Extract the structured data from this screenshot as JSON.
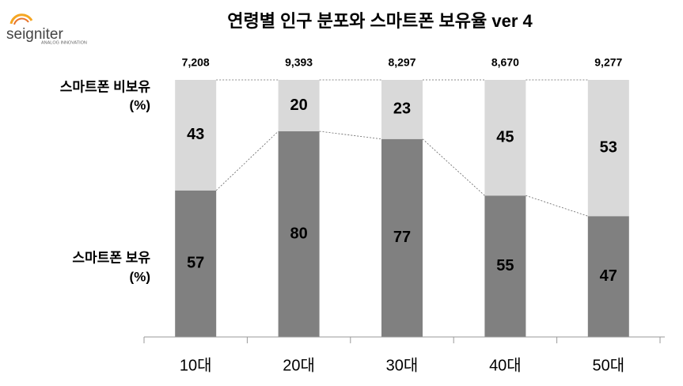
{
  "logo": {
    "name": "seigniter",
    "tagline": "ANALOG INNOVATION"
  },
  "chart_data": {
    "type": "stacked_bar",
    "title": "연령별 인구 분포와 스마트폰 보유율 ver 4",
    "categories": [
      "10대",
      "20대",
      "30대",
      "40대",
      "50대"
    ],
    "series": [
      {
        "name": "스마트폰 보유",
        "unit_label": "(%)",
        "color": "#808080",
        "values": [
          57,
          80,
          77,
          55,
          47
        ]
      },
      {
        "name": "스마트폰 비보유",
        "unit_label": "(%)",
        "color": "#d9d9d9",
        "values": [
          43,
          20,
          23,
          45,
          53
        ]
      }
    ],
    "totals": {
      "values": [
        7208,
        9393,
        8297,
        8670,
        9277
      ],
      "value_labels": [
        "7,208",
        "9,393",
        "8,297",
        "8,670",
        "9,277"
      ]
    },
    "ylim": [
      0,
      100
    ]
  }
}
